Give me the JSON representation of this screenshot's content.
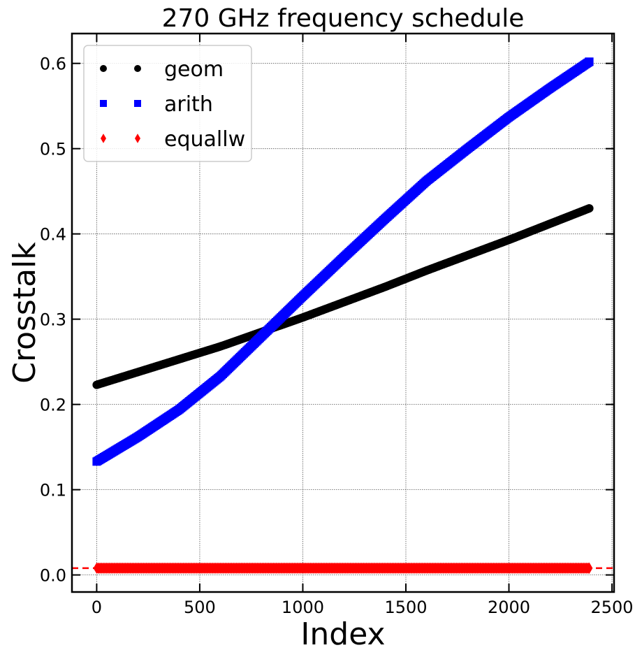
{
  "chart_data": {
    "type": "scatter",
    "title": "270 GHz frequency schedule",
    "xlabel": "Index",
    "ylabel": "Crosstalk",
    "xlim": [
      -120,
      2510
    ],
    "ylim": [
      -0.02,
      0.635
    ],
    "xticks": [
      0,
      500,
      1000,
      1500,
      2000,
      2500
    ],
    "yticks": [
      0.0,
      0.1,
      0.2,
      0.3,
      0.4,
      0.5,
      0.6
    ],
    "xtick_labels": [
      "0",
      "500",
      "1000",
      "1500",
      "2000",
      "2500"
    ],
    "ytick_labels": [
      "0.0",
      "0.1",
      "0.2",
      "0.3",
      "0.4",
      "0.5",
      "0.6"
    ],
    "grid": true,
    "legend_position": "top-left",
    "reference_line": {
      "y": 0.008,
      "color": "#ff0000",
      "style": "dashed"
    },
    "series": [
      {
        "name": "geom",
        "marker": "circle",
        "color": "#000000",
        "x": [
          0,
          200,
          400,
          600,
          800,
          1000,
          1200,
          1400,
          1600,
          1800,
          2000,
          2200,
          2390
        ],
        "y": [
          0.223,
          0.238,
          0.253,
          0.268,
          0.285,
          0.302,
          0.32,
          0.338,
          0.357,
          0.375,
          0.393,
          0.412,
          0.43
        ]
      },
      {
        "name": "arith",
        "marker": "square",
        "color": "#0000ff",
        "x": [
          0,
          200,
          400,
          600,
          800,
          1000,
          1200,
          1400,
          1600,
          1800,
          2000,
          2200,
          2390
        ],
        "y": [
          0.133,
          0.162,
          0.194,
          0.233,
          0.28,
          0.327,
          0.373,
          0.418,
          0.462,
          0.5,
          0.537,
          0.571,
          0.602
        ]
      },
      {
        "name": "equallw",
        "marker": "diamond",
        "color": "#ff0000",
        "x": [
          0,
          200,
          400,
          600,
          800,
          1000,
          1200,
          1400,
          1600,
          1800,
          2000,
          2200,
          2390
        ],
        "y": [
          0.008,
          0.008,
          0.008,
          0.008,
          0.008,
          0.008,
          0.008,
          0.008,
          0.008,
          0.008,
          0.008,
          0.008,
          0.008
        ]
      }
    ]
  }
}
